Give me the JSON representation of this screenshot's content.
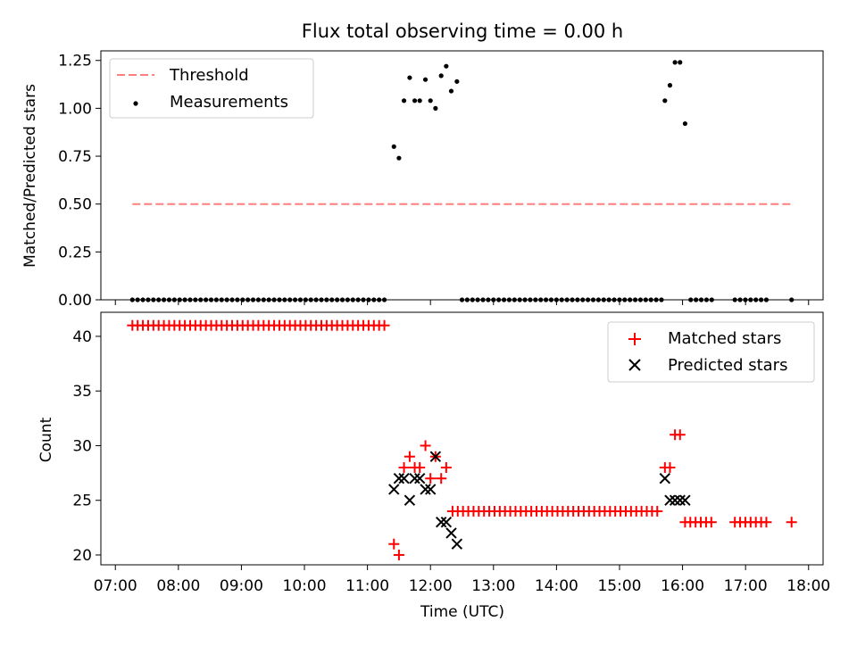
{
  "chart_data": [
    {
      "type": "scatter",
      "title": "Flux total observing time = 0.00 h",
      "xlabel": "",
      "ylabel": "Matched/Predicted stars",
      "xlim_hours": [
        6.77,
        18.23
      ],
      "ylim": [
        0,
        1.3
      ],
      "yticks": [
        0,
        0.25,
        0.5,
        0.75,
        1.0,
        1.25
      ],
      "ytick_labels": [
        "0.00",
        "0.25",
        "0.50",
        "0.75",
        "1.00",
        "1.25"
      ],
      "xticks_hours": [
        7,
        8,
        9,
        10,
        11,
        12,
        13,
        14,
        15,
        16,
        17,
        18
      ],
      "legend": {
        "position": "top-left",
        "entries": [
          {
            "label": "Threshold",
            "kind": "dashed-line",
            "color": "#ff7f7f"
          },
          {
            "label": "Measurements",
            "kind": "dot",
            "color": "#000000"
          }
        ]
      },
      "threshold": {
        "name": "Threshold",
        "value": 0.5,
        "x_range_hours": [
          7.27,
          17.73
        ],
        "color": "#ff7f7f"
      },
      "series": [
        {
          "name": "Measurements",
          "color": "#000000",
          "zero_segments": [
            {
              "start": 7.27,
              "end": 11.33,
              "step": 0.0833
            },
            {
              "start": 12.5,
              "end": 15.67,
              "step": 0.0833
            },
            {
              "start": 16.13,
              "end": 16.47,
              "step": 0.0833
            },
            {
              "start": 16.83,
              "end": 17.33,
              "step": 0.0833
            }
          ],
          "points": [
            {
              "x": 17.73,
              "y": 0
            },
            {
              "x": 11.42,
              "y": 0.8
            },
            {
              "x": 11.5,
              "y": 0.74
            },
            {
              "x": 11.58,
              "y": 1.04
            },
            {
              "x": 11.67,
              "y": 1.16
            },
            {
              "x": 11.75,
              "y": 1.04
            },
            {
              "x": 11.83,
              "y": 1.04
            },
            {
              "x": 11.92,
              "y": 1.15
            },
            {
              "x": 12.0,
              "y": 1.04
            },
            {
              "x": 12.08,
              "y": 1.0
            },
            {
              "x": 12.17,
              "y": 1.17
            },
            {
              "x": 12.25,
              "y": 1.22
            },
            {
              "x": 12.33,
              "y": 1.09
            },
            {
              "x": 12.42,
              "y": 1.14
            },
            {
              "x": 15.72,
              "y": 1.04
            },
            {
              "x": 15.8,
              "y": 1.12
            },
            {
              "x": 15.88,
              "y": 1.24
            },
            {
              "x": 15.96,
              "y": 1.24
            },
            {
              "x": 16.04,
              "y": 0.92
            }
          ]
        }
      ]
    },
    {
      "type": "scatter",
      "title": "",
      "xlabel": "Time (UTC)",
      "ylabel": "Count",
      "xlim_hours": [
        6.77,
        18.23
      ],
      "ylim": [
        19.1,
        42.2
      ],
      "yticks": [
        20,
        25,
        30,
        35,
        40
      ],
      "ytick_labels": [
        "20",
        "25",
        "30",
        "35",
        "40"
      ],
      "xticks_hours": [
        7,
        8,
        9,
        10,
        11,
        12,
        13,
        14,
        15,
        16,
        17,
        18
      ],
      "xtick_labels": [
        "07:00",
        "08:00",
        "09:00",
        "10:00",
        "11:00",
        "12:00",
        "13:00",
        "14:00",
        "15:00",
        "16:00",
        "17:00",
        "18:00"
      ],
      "legend": {
        "position": "top-right",
        "entries": [
          {
            "label": "Matched stars",
            "kind": "plus",
            "color": "#ff0000"
          },
          {
            "label": "Predicted stars",
            "kind": "cross",
            "color": "#000000"
          }
        ]
      },
      "series": [
        {
          "name": "Matched stars",
          "marker": "plus",
          "color": "#ff0000",
          "constant_segments": [
            {
              "start": 7.27,
              "end": 11.33,
              "step": 0.0833,
              "y": 41
            },
            {
              "start": 12.35,
              "end": 15.67,
              "step": 0.0833,
              "y": 24
            },
            {
              "start": 16.04,
              "end": 16.46,
              "step": 0.0833,
              "y": 23
            },
            {
              "start": 16.83,
              "end": 17.33,
              "step": 0.0833,
              "y": 23
            }
          ],
          "points": [
            {
              "x": 17.73,
              "y": 23
            },
            {
              "x": 11.42,
              "y": 21
            },
            {
              "x": 11.5,
              "y": 20
            },
            {
              "x": 11.58,
              "y": 28
            },
            {
              "x": 11.67,
              "y": 29
            },
            {
              "x": 11.75,
              "y": 28
            },
            {
              "x": 11.83,
              "y": 28
            },
            {
              "x": 11.92,
              "y": 30
            },
            {
              "x": 12.0,
              "y": 27
            },
            {
              "x": 12.08,
              "y": 29
            },
            {
              "x": 12.17,
              "y": 27
            },
            {
              "x": 12.25,
              "y": 28
            },
            {
              "x": 15.72,
              "y": 28
            },
            {
              "x": 15.8,
              "y": 28
            },
            {
              "x": 15.88,
              "y": 31
            },
            {
              "x": 15.96,
              "y": 31
            }
          ]
        },
        {
          "name": "Predicted stars",
          "marker": "cross",
          "color": "#000000",
          "points": [
            {
              "x": 11.42,
              "y": 26
            },
            {
              "x": 11.5,
              "y": 27
            },
            {
              "x": 11.58,
              "y": 27
            },
            {
              "x": 11.67,
              "y": 25
            },
            {
              "x": 11.75,
              "y": 27
            },
            {
              "x": 11.83,
              "y": 27
            },
            {
              "x": 11.92,
              "y": 26
            },
            {
              "x": 12.0,
              "y": 26
            },
            {
              "x": 12.08,
              "y": 29
            },
            {
              "x": 12.17,
              "y": 23
            },
            {
              "x": 12.25,
              "y": 23
            },
            {
              "x": 12.33,
              "y": 22
            },
            {
              "x": 12.42,
              "y": 21
            },
            {
              "x": 15.72,
              "y": 27
            },
            {
              "x": 15.8,
              "y": 25
            },
            {
              "x": 15.88,
              "y": 25
            },
            {
              "x": 15.96,
              "y": 25
            },
            {
              "x": 16.04,
              "y": 25
            }
          ]
        }
      ]
    }
  ]
}
